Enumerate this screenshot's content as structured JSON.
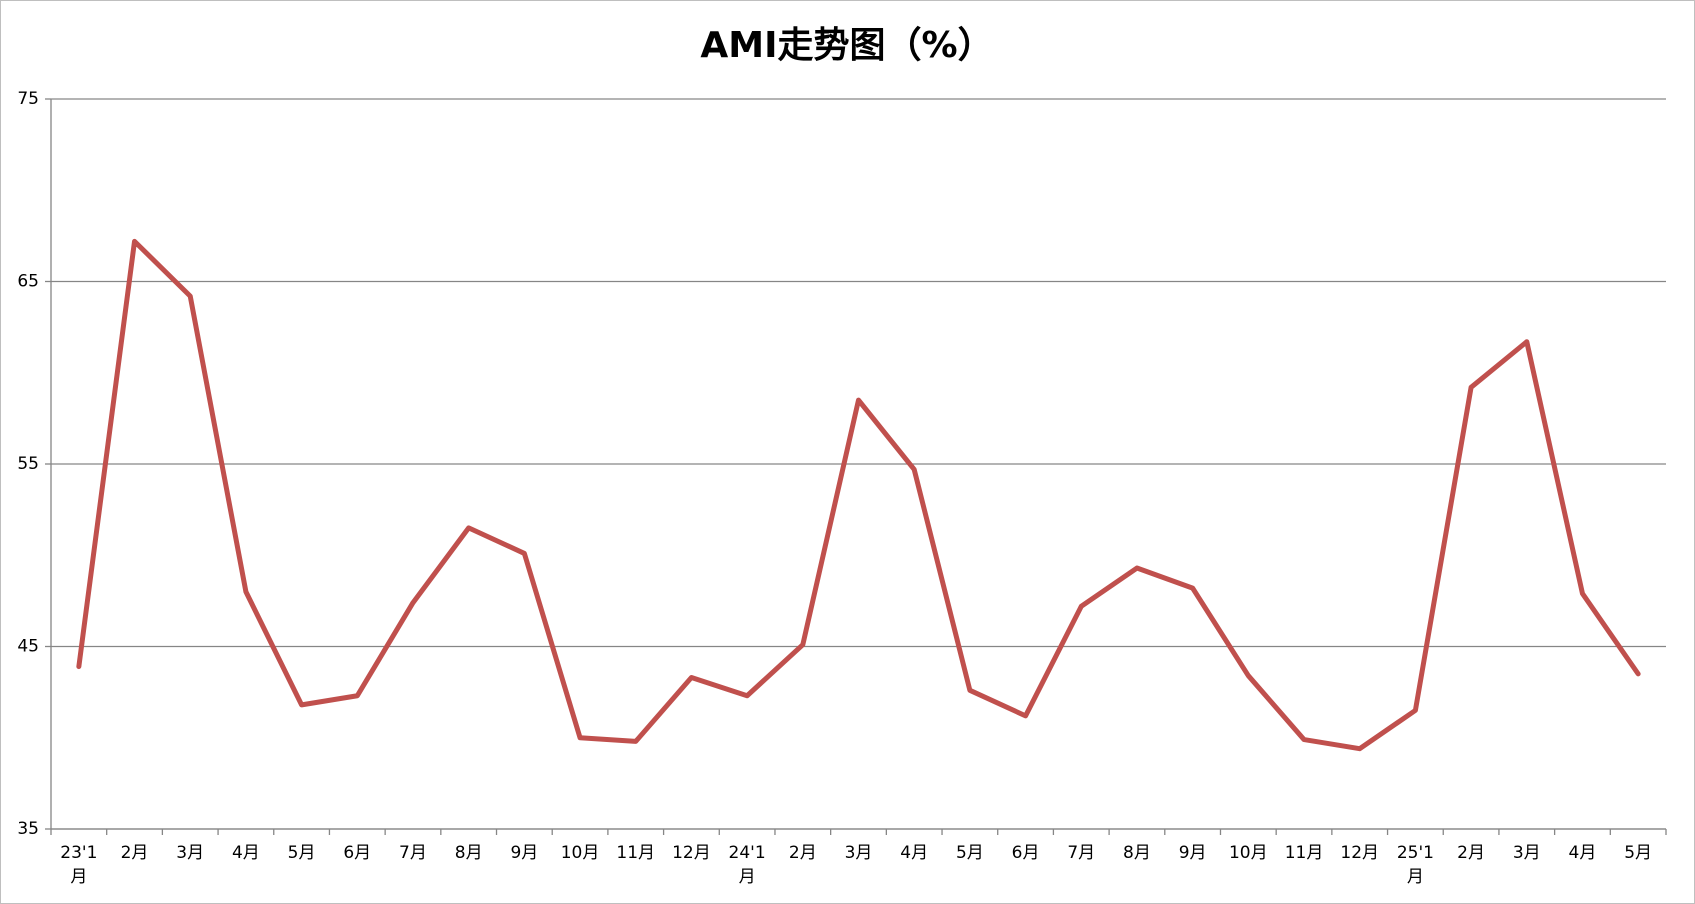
{
  "chart_data": {
    "type": "line",
    "title": "AMI走势图（%）",
    "categories": [
      "23'1月",
      "2月",
      "3月",
      "4月",
      "5月",
      "6月",
      "7月",
      "8月",
      "9月",
      "10月",
      "11月",
      "12月",
      "24'1月",
      "2月",
      "3月",
      "4月",
      "5月",
      "6月",
      "7月",
      "8月",
      "9月",
      "10月",
      "11月",
      "12月",
      "25'1月",
      "2月",
      "3月",
      "4月",
      "5月"
    ],
    "series": [
      {
        "name": "AMI",
        "color": "#c0504d",
        "values": [
          43.9,
          67.2,
          64.2,
          48.0,
          41.8,
          42.3,
          47.4,
          51.5,
          50.1,
          40.0,
          39.8,
          43.3,
          42.3,
          45.1,
          58.5,
          54.7,
          42.6,
          41.2,
          47.2,
          49.3,
          48.2,
          43.4,
          39.9,
          39.4,
          41.5,
          59.2,
          61.7,
          47.9,
          43.5
        ]
      }
    ],
    "ylim": [
      35,
      75
    ],
    "yticks": [
      35,
      45,
      55,
      65,
      75
    ],
    "grid": true
  }
}
